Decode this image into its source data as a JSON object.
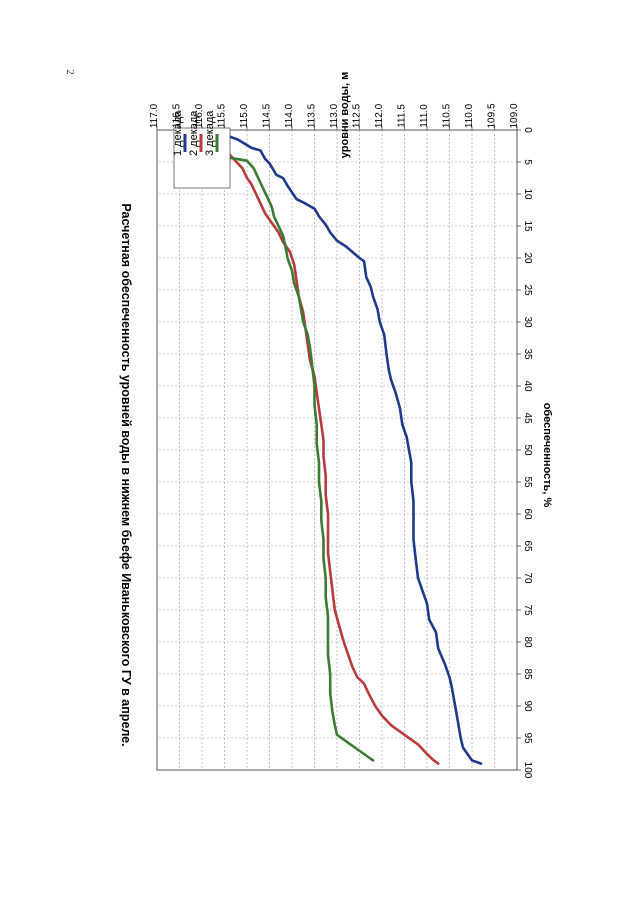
{
  "page_number": "2",
  "chart_data": {
    "type": "line",
    "title": "Расчетная обеспеченность уровней воды в нижнем бьефе Иваньковского ГУ в апреле.",
    "xlabel": "обеспеченность, %",
    "ylabel": "уровни воды, м",
    "xlim": [
      0,
      100
    ],
    "ylim": [
      109.0,
      117.0
    ],
    "x_ticks": [
      "0",
      "5",
      "10",
      "15",
      "20",
      "25",
      "30",
      "35",
      "40",
      "45",
      "50",
      "55",
      "60",
      "65",
      "70",
      "75",
      "80",
      "85",
      "90",
      "95",
      "100"
    ],
    "y_ticks": [
      "109.0",
      "109.5",
      "110.0",
      "110.5",
      "111.0",
      "111.5",
      "112.0",
      "112.5",
      "113.0",
      "113.5",
      "114.0",
      "114.5",
      "115.0",
      "115.5",
      "116.0",
      "116.5",
      "117.0"
    ],
    "grid": true,
    "legend_position": "top-right",
    "series": [
      {
        "name": "1 декада",
        "color": "#1F3A8A",
        "x": [
          0.5,
          1.5,
          2.8,
          3.2,
          4.5,
          5.2,
          7.0,
          7.5,
          8.7,
          10.8,
          11.5,
          12.3,
          13.5,
          14.8,
          16.0,
          17.3,
          18.2,
          20.0,
          20.5,
          23.0,
          24.5,
          26.0,
          28.0,
          30.0,
          32.0,
          35.0,
          37.5,
          39.0,
          41.0,
          43.5,
          46.0,
          48.0,
          50.0,
          52.0,
          55.0,
          58.0,
          61.0,
          64.0,
          67.0,
          70.0,
          72.0,
          74.0,
          76.5,
          78.5,
          81.0,
          83.5,
          85.5,
          87.0,
          89.0,
          91.0,
          93.0,
          95.0,
          96.5,
          97.5,
          98.5,
          99.0
        ],
        "y": [
          115.6,
          115.2,
          114.9,
          114.7,
          114.6,
          114.5,
          114.35,
          114.2,
          114.1,
          113.9,
          113.7,
          113.5,
          113.4,
          113.25,
          113.15,
          113.0,
          112.8,
          112.5,
          112.4,
          112.35,
          112.25,
          112.2,
          112.1,
          112.05,
          111.95,
          111.9,
          111.85,
          111.8,
          111.7,
          111.6,
          111.55,
          111.45,
          111.4,
          111.35,
          111.35,
          111.3,
          111.3,
          111.3,
          111.25,
          111.2,
          111.1,
          111.0,
          110.95,
          110.8,
          110.75,
          110.6,
          110.5,
          110.45,
          110.4,
          110.35,
          110.3,
          110.25,
          110.2,
          110.1,
          110.0,
          109.8
        ]
      },
      {
        "name": "2 декада",
        "color": "#B83B3B",
        "x": [
          0.5,
          1.5,
          3.0,
          4.5,
          6.0,
          7.5,
          8.5,
          10.0,
          11.5,
          13.0,
          14.5,
          16.0,
          17.5,
          19.0,
          21.0,
          23.5,
          26.0,
          28.5,
          31.0,
          33.5,
          36.0,
          38.5,
          41.0,
          43.5,
          46.0,
          48.5,
          51.0,
          54.0,
          57.0,
          60.0,
          63.0,
          66.0,
          69.0,
          72.0,
          75.0,
          77.5,
          80.0,
          82.0,
          84.0,
          85.5,
          86.5,
          88.0,
          90.0,
          91.5,
          93.0,
          94.5,
          96.0,
          97.5,
          98.5,
          99.0
        ],
        "y": [
          116.0,
          115.8,
          115.5,
          115.3,
          115.1,
          115.0,
          114.9,
          114.8,
          114.7,
          114.6,
          114.45,
          114.3,
          114.2,
          114.05,
          113.95,
          113.9,
          113.85,
          113.75,
          113.7,
          113.65,
          113.6,
          113.5,
          113.45,
          113.4,
          113.35,
          113.3,
          113.3,
          113.25,
          113.25,
          113.2,
          113.2,
          113.2,
          113.15,
          113.1,
          113.05,
          112.95,
          112.85,
          112.75,
          112.65,
          112.55,
          112.4,
          112.3,
          112.15,
          112.0,
          111.8,
          111.5,
          111.2,
          111.0,
          110.85,
          110.75
        ]
      },
      {
        "name": "3 декада",
        "color": "#3D7A34",
        "x": [
          0.5,
          2.0,
          3.5,
          4.8,
          6.0,
          7.5,
          9.0,
          10.5,
          12.0,
          13.5,
          15.0,
          16.5,
          18.0,
          20.0,
          22.0,
          24.0,
          26.0,
          28.0,
          30.0,
          32.0,
          34.0,
          37.0,
          40.0,
          43.0,
          46.0,
          49.0,
          52.0,
          55.0,
          58.0,
          61.0,
          64.0,
          67.0,
          70.0,
          73.0,
          76.0,
          79.0,
          82.0,
          85.0,
          88.0,
          91.0,
          93.0,
          94.5,
          96.0,
          97.5,
          98.5
        ],
        "y": [
          116.5,
          116.3,
          116.1,
          115.0,
          114.85,
          114.75,
          114.65,
          114.55,
          114.45,
          114.4,
          114.3,
          114.2,
          114.15,
          114.1,
          114.0,
          113.95,
          113.85,
          113.8,
          113.75,
          113.65,
          113.6,
          113.55,
          113.5,
          113.5,
          113.45,
          113.45,
          113.4,
          113.4,
          113.35,
          113.35,
          113.3,
          113.3,
          113.25,
          113.25,
          113.2,
          113.2,
          113.2,
          113.15,
          113.15,
          113.1,
          113.05,
          113.0,
          112.7,
          112.4,
          112.2
        ]
      }
    ]
  }
}
